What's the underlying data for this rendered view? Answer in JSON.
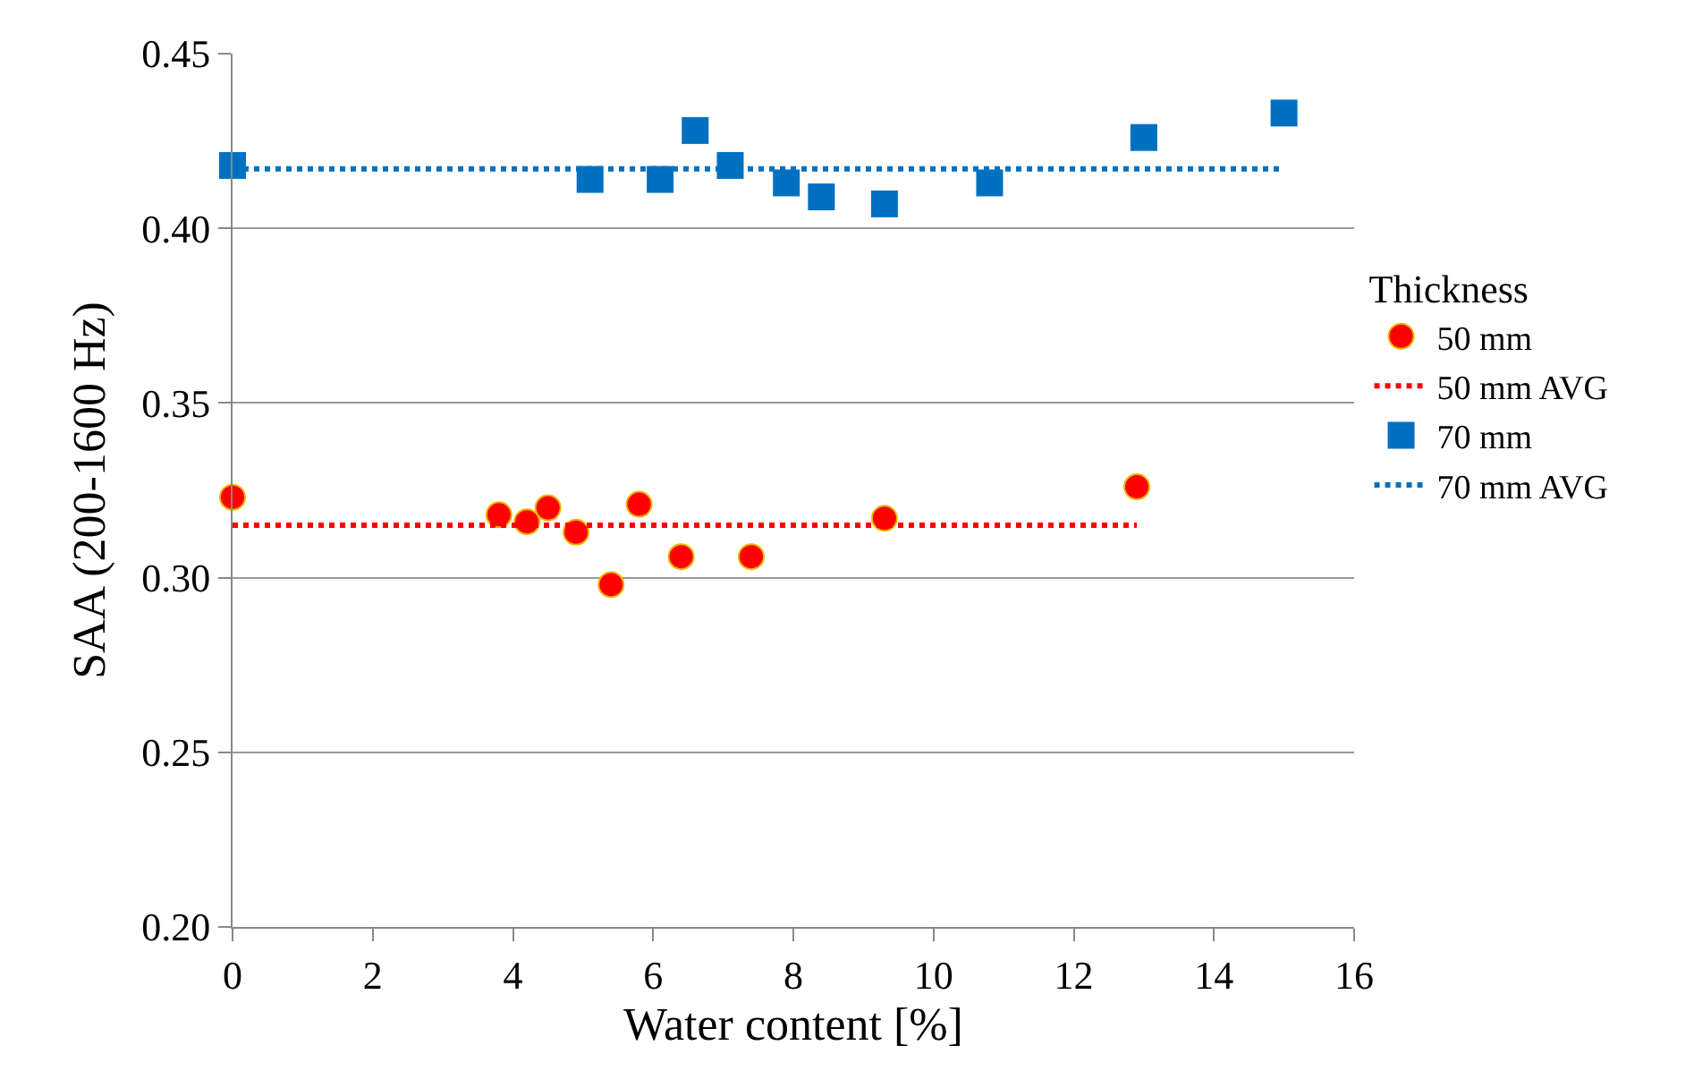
{
  "chart_data": {
    "type": "scatter",
    "xlabel": "Water content [%]",
    "ylabel": "SAA (200-1600 Hz)",
    "legend_title": "Thickness",
    "legend": "right",
    "grid": "y",
    "xlim": [
      0,
      16
    ],
    "xticks": [
      0,
      2,
      4,
      6,
      8,
      10,
      12,
      14,
      16
    ],
    "ylim": [
      0.2,
      0.45
    ],
    "yticks": [
      {
        "value": 0.2,
        "label": "0.20"
      },
      {
        "value": 0.25,
        "label": "0.25"
      },
      {
        "value": 0.3,
        "label": "0.30"
      },
      {
        "value": 0.35,
        "label": "0.35"
      },
      {
        "value": 0.4,
        "label": "0.40"
      },
      {
        "value": 0.45,
        "label": "0.45"
      }
    ],
    "series": [
      {
        "name": "50 mm",
        "marker": "circle",
        "color": "#ff0000",
        "x": [
          0,
          3.8,
          4.2,
          4.5,
          4.9,
          5.4,
          5.8,
          6.4,
          7.4,
          9.3,
          12.9
        ],
        "values": [
          0.323,
          0.318,
          0.316,
          0.32,
          0.313,
          0.298,
          0.321,
          0.306,
          0.306,
          0.317,
          0.326
        ]
      },
      {
        "name": "50 mm AVG",
        "type": "line",
        "line_style": "dotted",
        "marker": "none",
        "color": "#ff0000",
        "x": [
          0,
          12.9
        ],
        "values": [
          0.315,
          0.315
        ]
      },
      {
        "name": "70 mm",
        "marker": "square",
        "color": "#0070c0",
        "x": [
          0,
          5.1,
          6.1,
          6.6,
          7.1,
          7.9,
          8.4,
          9.3,
          10.8,
          13.0,
          15.0
        ],
        "values": [
          0.418,
          0.414,
          0.414,
          0.428,
          0.418,
          0.413,
          0.409,
          0.407,
          0.413,
          0.426,
          0.433
        ]
      },
      {
        "name": "70 mm AVG",
        "type": "line",
        "line_style": "dotted",
        "marker": "none",
        "color": "#0070c0",
        "x": [
          0,
          15
        ],
        "values": [
          0.417,
          0.417
        ]
      }
    ]
  }
}
